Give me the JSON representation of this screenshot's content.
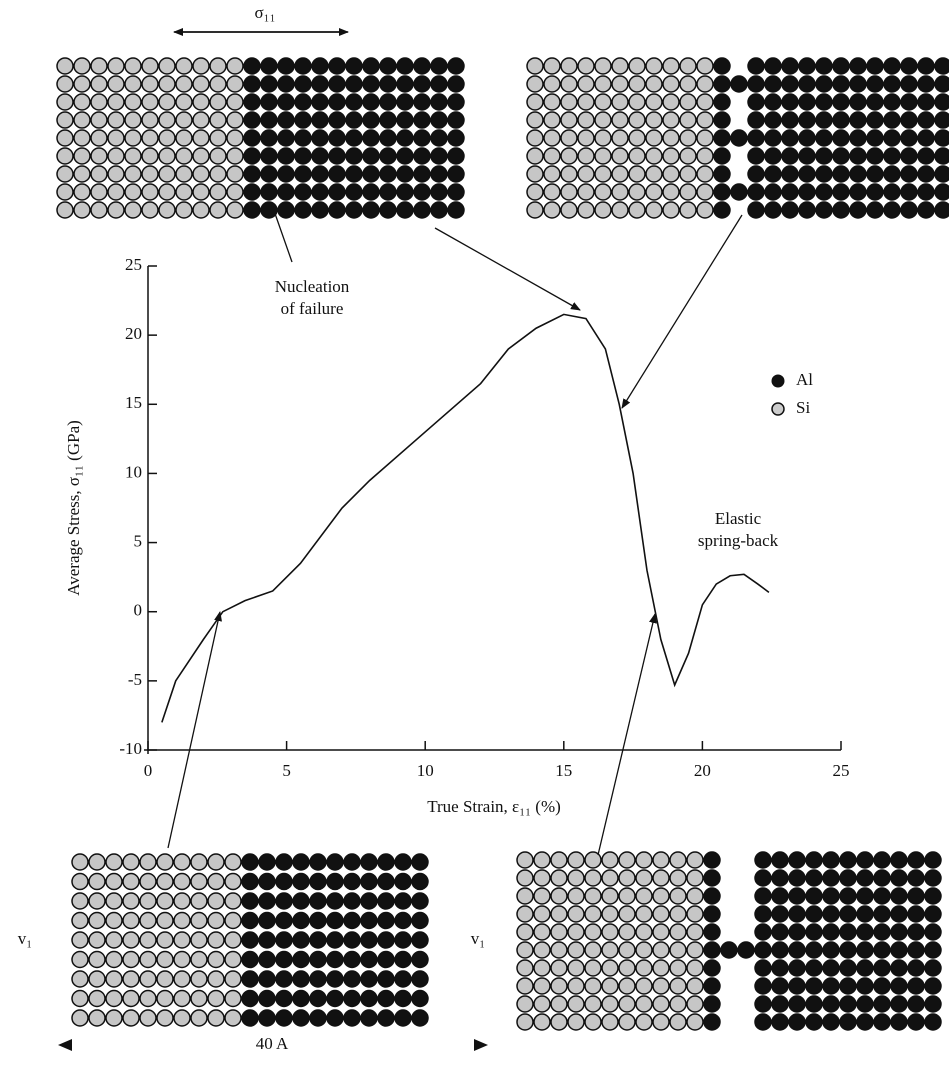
{
  "chart_data": {
    "type": "line",
    "xlabel": "True Strain, ε₁₁ (%)",
    "ylabel": "Average Stress, σ₁₁ (GPa)",
    "x": [
      0.5,
      1,
      2,
      2.7,
      3.5,
      4.5,
      5.5,
      7,
      8,
      10,
      12,
      13,
      14,
      15,
      15.8,
      16.5,
      17,
      17.5,
      18,
      18.5,
      19,
      19.5,
      20,
      20.5,
      21,
      21.5,
      22,
      22.4
    ],
    "values": [
      -8,
      -5,
      -2,
      0,
      0.8,
      1.5,
      3.5,
      7.5,
      9.5,
      13,
      16.5,
      19,
      20.5,
      21.5,
      21.2,
      19,
      15,
      10,
      3,
      -2,
      -5.3,
      -3,
      0.5,
      2,
      2.6,
      2.7,
      2,
      1.4
    ],
    "color": "#111111",
    "xlim": [
      0,
      25
    ],
    "ylim": [
      -10,
      25
    ],
    "xticks": [
      0,
      5,
      10,
      15,
      20,
      25
    ],
    "yticks": [
      -10,
      -5,
      0,
      5,
      10,
      15,
      20,
      25
    ],
    "annotations": [
      "Nucleation",
      "of failure",
      "Elastic",
      "spring-back"
    ],
    "legend_items": [
      "Al",
      "Si"
    ],
    "diagram_labels": {
      "stress": "σ₁₁",
      "velocity_left": "v₁",
      "velocity_right": "v₁",
      "width": "40 A"
    }
  }
}
